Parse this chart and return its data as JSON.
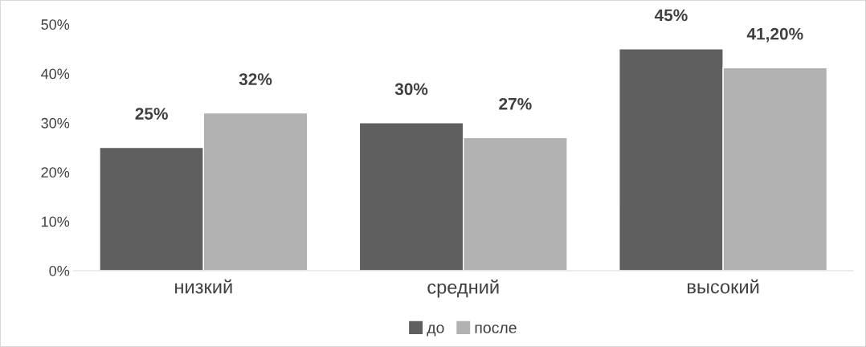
{
  "chart_data": {
    "type": "bar",
    "categories": [
      "низкий",
      "средний",
      "высокий"
    ],
    "series": [
      {
        "name": "до",
        "color": "#5f5f5f",
        "values": [
          25,
          30,
          45
        ],
        "value_labels": [
          "25%",
          "30%",
          "45%"
        ]
      },
      {
        "name": "после",
        "color": "#b2b2b2",
        "values": [
          32,
          27,
          41.2
        ],
        "value_labels": [
          "32%",
          "27%",
          "41,20%"
        ]
      }
    ],
    "ylim": [
      0,
      50
    ],
    "yticks": [
      {
        "value": 0,
        "label": "0%"
      },
      {
        "value": 10,
        "label": "10%"
      },
      {
        "value": 20,
        "label": "20%"
      },
      {
        "value": 30,
        "label": "30%"
      },
      {
        "value": 40,
        "label": "40%"
      },
      {
        "value": 50,
        "label": "50%"
      }
    ],
    "grid": false,
    "legend": "bottom"
  }
}
